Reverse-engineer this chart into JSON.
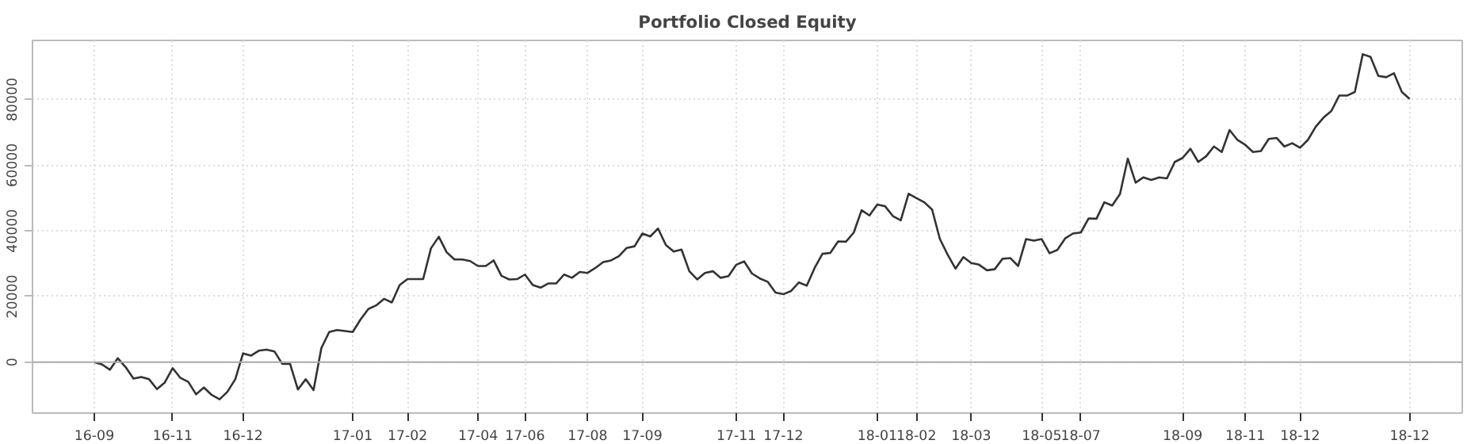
{
  "chart_data": {
    "type": "line",
    "title": "Portfolio Closed Equity",
    "categories": [
      "16-09",
      null,
      null,
      null,
      null,
      null,
      null,
      null,
      null,
      null,
      "16-11",
      null,
      null,
      null,
      null,
      null,
      null,
      null,
      null,
      "16-12",
      null,
      null,
      null,
      null,
      null,
      null,
      null,
      null,
      null,
      null,
      null,
      null,
      null,
      "17-01",
      null,
      null,
      null,
      null,
      null,
      null,
      "17-02",
      null,
      null,
      null,
      null,
      null,
      null,
      null,
      null,
      "17-04",
      null,
      null,
      null,
      null,
      null,
      "17-06",
      null,
      null,
      null,
      null,
      null,
      null,
      null,
      "17-08",
      null,
      null,
      null,
      null,
      null,
      null,
      "17-09",
      null,
      null,
      null,
      null,
      null,
      null,
      null,
      null,
      null,
      null,
      null,
      "17-11",
      null,
      null,
      null,
      null,
      null,
      "17-12",
      null,
      null,
      null,
      null,
      null,
      null,
      null,
      null,
      null,
      null,
      null,
      "18-01",
      null,
      null,
      null,
      null,
      "18-02",
      null,
      null,
      null,
      null,
      null,
      null,
      "18-03",
      null,
      null,
      null,
      null,
      null,
      null,
      null,
      null,
      "18-05",
      null,
      null,
      null,
      null,
      "18-07",
      null,
      null,
      null,
      null,
      null,
      null,
      null,
      null,
      null,
      null,
      null,
      null,
      "18-09",
      null,
      null,
      null,
      null,
      null,
      null,
      null,
      "18-11",
      null,
      null,
      null,
      null,
      null,
      null,
      "18-12",
      null,
      null,
      null,
      null,
      null,
      null,
      null,
      null,
      null,
      null,
      null,
      null,
      null,
      "18-12"
    ],
    "series": [
      {
        "color": "#333333",
        "values": [
          0,
          -700,
          -2300,
          1200,
          -1500,
          -5000,
          -4500,
          -5200,
          -8200,
          -6200,
          -1800,
          -4800,
          -6000,
          -9800,
          -7700,
          -10000,
          -11300,
          -9000,
          -5200,
          2700,
          2000,
          3500,
          3800,
          3300,
          -500,
          -500,
          -8300,
          -5200,
          -8500,
          4300,
          9200,
          9800,
          9500,
          9200,
          13000,
          16200,
          17300,
          19300,
          18200,
          23500,
          25300,
          25300,
          25300,
          34700,
          38200,
          33500,
          31300,
          31300,
          30800,
          29300,
          29300,
          31000,
          26300,
          25200,
          25300,
          26700,
          23500,
          22700,
          24000,
          24000,
          26700,
          25700,
          27500,
          27200,
          28700,
          30500,
          31000,
          32300,
          34800,
          35300,
          39200,
          38300,
          40700,
          35700,
          33700,
          34300,
          27700,
          25200,
          27200,
          27700,
          25700,
          26200,
          29700,
          30700,
          27000,
          25500,
          24500,
          21200,
          20700,
          21700,
          24300,
          23300,
          28700,
          33000,
          33300,
          36800,
          36700,
          39500,
          46300,
          44700,
          48000,
          47500,
          44500,
          43200,
          51300,
          50000,
          48700,
          46500,
          37500,
          32700,
          28500,
          32000,
          30200,
          29700,
          28000,
          28300,
          31500,
          31700,
          29300,
          37500,
          37000,
          37500,
          33200,
          34200,
          37700,
          39200,
          39500,
          43800,
          43700,
          48700,
          47700,
          51200,
          62000,
          54700,
          56300,
          55500,
          56300,
          56000,
          61000,
          62200,
          65000,
          61000,
          62700,
          65700,
          64000,
          70700,
          67700,
          66200,
          64000,
          64300,
          68000,
          68300,
          65700,
          66700,
          65300,
          67700,
          71700,
          74500,
          76500,
          81200,
          81200,
          82300,
          93800,
          93000,
          87200,
          86800,
          88000,
          82300,
          80200
        ]
      }
    ],
    "ylim": [
      -15500,
      98000
    ],
    "yticks": [
      0,
      20000,
      40000,
      60000,
      80000
    ],
    "grid": true,
    "ref_lines": [
      {
        "axis": "y",
        "value": 0,
        "color": "#aaaaaa"
      }
    ],
    "line_style": "solid",
    "marker": "none"
  }
}
